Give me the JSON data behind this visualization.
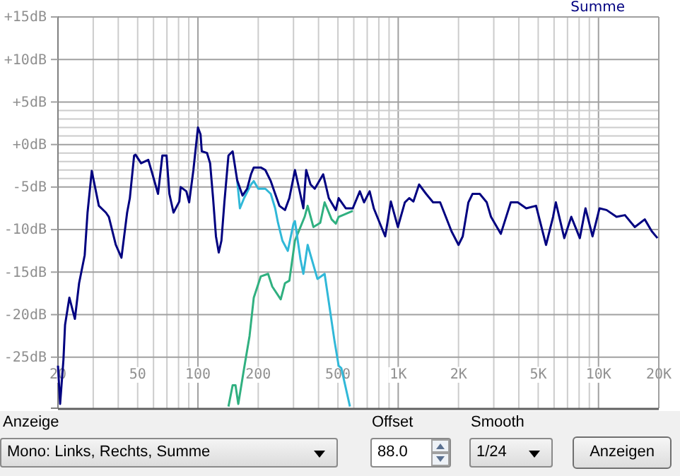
{
  "chart_data": {
    "type": "line",
    "legend": "top right",
    "grid": true,
    "log": "x",
    "marker": "none",
    "line_style": "solid",
    "xlim": [
      20,
      20000
    ],
    "xticks": [
      20,
      {
        "value": 30,
        "label": null
      },
      {
        "value": 40,
        "label": null
      },
      50,
      {
        "value": 60,
        "label": null
      },
      {
        "value": 70,
        "label": null
      },
      {
        "value": 80,
        "label": null
      },
      {
        "value": 90,
        "label": null
      },
      100,
      200,
      {
        "value": 300,
        "label": null
      },
      {
        "value": 400,
        "label": null
      },
      500,
      {
        "value": 600,
        "label": null
      },
      {
        "value": 700,
        "label": null
      },
      {
        "value": 800,
        "label": null
      },
      {
        "value": 900,
        "label": null
      },
      {
        "value": 1000,
        "label": "1K"
      },
      {
        "value": 2000,
        "label": "2K"
      },
      {
        "value": 3000,
        "label": null
      },
      {
        "value": 4000,
        "label": null
      },
      {
        "value": 5000,
        "label": "5K"
      },
      {
        "value": 6000,
        "label": null
      },
      {
        "value": 7000,
        "label": null
      },
      {
        "value": 8000,
        "label": null
      },
      {
        "value": 9000,
        "label": null
      },
      {
        "value": 10000,
        "label": "10K"
      },
      {
        "value": 20000,
        "label": "20K"
      }
    ],
    "ylim": [
      -31,
      15
    ],
    "yticks": [
      {
        "value": -25,
        "label": "-25dB"
      },
      {
        "value": -20,
        "label": "-20dB"
      },
      {
        "value": -15,
        "label": "-15dB"
      },
      {
        "value": -10,
        "label": "-10dB"
      },
      {
        "value": -5,
        "label": "-5dB"
      },
      {
        "value": -4,
        "label": null
      },
      {
        "value": -3,
        "label": null
      },
      {
        "value": -2,
        "label": null
      },
      {
        "value": -1,
        "label": null
      },
      {
        "value": 0,
        "label": "+0dB"
      },
      {
        "value": 1,
        "label": null
      },
      {
        "value": 2,
        "label": null
      },
      {
        "value": 3,
        "label": null
      },
      {
        "value": 4,
        "label": null
      },
      {
        "value": 5,
        "label": "+5dB"
      },
      {
        "value": 10,
        "label": "+10dB"
      },
      {
        "value": 15,
        "label": "+15dB"
      }
    ],
    "series": [
      {
        "name": "Summe",
        "color": "#000080",
        "x": [
          20,
          20.5,
          21.3,
          21.7,
          22.8,
          24.3,
          25.5,
          27.2,
          28.1,
          29.5,
          32,
          34.7,
          35.9,
          38.9,
          41.5,
          44.3,
          45.7,
          48,
          48.8,
          52,
          56.5,
          59.3,
          63.2,
          66.4,
          69.7,
          72,
          75.5,
          80.7,
          82,
          87.5,
          90.4,
          94.9,
          100,
          103,
          104.5,
          111,
          115,
          119,
          123,
          127,
          131,
          135.5,
          142,
          149,
          157,
          167,
          176,
          184,
          190,
          206,
          217,
          231,
          243,
          255,
          272,
          286,
          305,
          320,
          336,
          347,
          365,
          383,
          422,
          450,
          488,
          504,
          547,
          593,
          643,
          675,
          720,
          755,
          861,
          919,
          996,
          1079,
          1135,
          1191,
          1271,
          1378,
          1493,
          1619,
          1845,
          2000,
          2099,
          2240,
          2350,
          2553,
          2767,
          2905,
          3252,
          3647,
          3953,
          4357,
          4877,
          5471,
          5931,
          6124,
          6747,
          7313,
          8066,
          8610,
          9336,
          10120,
          10970,
          12300,
          13550,
          15180,
          17020,
          18450,
          19700
        ],
        "values": [
          -26,
          -30.5,
          -25.3,
          -21.2,
          -18,
          -20.5,
          -16.3,
          -13,
          -8,
          -3.1,
          -7.2,
          -8,
          -8.5,
          -11.8,
          -13.3,
          -8,
          -6.3,
          -1.3,
          -1.2,
          -2.2,
          -1.8,
          -3.5,
          -5.8,
          -1.3,
          -1.3,
          -5.8,
          -8,
          -6.7,
          -5,
          -5.5,
          -6.8,
          -3,
          2,
          1.2,
          -0.8,
          -1,
          -2.2,
          -6.3,
          -10.8,
          -12.7,
          -11.3,
          -6.8,
          -1.3,
          -0.8,
          -4.2,
          -6,
          -5.2,
          -3.5,
          -2.7,
          -2.7,
          -3,
          -4.3,
          -5.8,
          -7.2,
          -7.7,
          -6.3,
          -3,
          -5.2,
          -7.5,
          -3,
          -4.7,
          -5.2,
          -3.5,
          -6.3,
          -7.7,
          -6.3,
          -7.5,
          -7.5,
          -5.5,
          -6.8,
          -5.5,
          -7.5,
          -10.8,
          -6.7,
          -9.7,
          -6.8,
          -6.3,
          -6.7,
          -4.7,
          -5.8,
          -6.8,
          -6.8,
          -10.2,
          -11.8,
          -10.8,
          -6.8,
          -5.8,
          -5.8,
          -6.8,
          -8.5,
          -10.5,
          -6.8,
          -6.8,
          -7.5,
          -7.2,
          -11.8,
          -8.5,
          -6.8,
          -11,
          -8.5,
          -11,
          -7.5,
          -10.8,
          -7.5,
          -7.7,
          -8.5,
          -8.3,
          -9.7,
          -8.8,
          -10.2,
          -11
        ]
      },
      {
        "color": "#30b8d8",
        "x": [
          157,
          162,
          170,
          184,
          190,
          200,
          217,
          231,
          243,
          251,
          264,
          281,
          300,
          305,
          325,
          336,
          353,
          365,
          395,
          429,
          450,
          480,
          504,
          520,
          574
        ],
        "values": [
          -4.2,
          -7.5,
          -6.3,
          -4.7,
          -4.3,
          -5.2,
          -5.2,
          -5.8,
          -7.5,
          -9.2,
          -11.3,
          -12.5,
          -9.3,
          -9,
          -13.5,
          -15.2,
          -11.8,
          -13,
          -15.8,
          -15.2,
          -18.5,
          -23,
          -26,
          -26.3,
          -30.8
        ]
      },
      {
        "color": "#30b080",
        "x": [
          142,
          149,
          154,
          159,
          170,
          181,
          190,
          206,
          224,
          235,
          259,
          272,
          286,
          305,
          325,
          341,
          353,
          377,
          408,
          429,
          465,
          488,
          504,
          593
        ],
        "values": [
          -30.8,
          -28.3,
          -28.3,
          -30.5,
          -26.3,
          -22.5,
          -18,
          -15.5,
          -15.2,
          -16.7,
          -18.2,
          -16.3,
          -16,
          -11.3,
          -9.7,
          -8.5,
          -7.2,
          -9.7,
          -9.2,
          -6.8,
          -8.8,
          -9.3,
          -8.5,
          -7.8
        ]
      }
    ],
    "annotations": [
      "Anzeige",
      "Mono: Links, Rechts, Summe",
      "Offset",
      "88.0",
      "Smooth",
      "1/24",
      "Anzeigen"
    ]
  }
}
